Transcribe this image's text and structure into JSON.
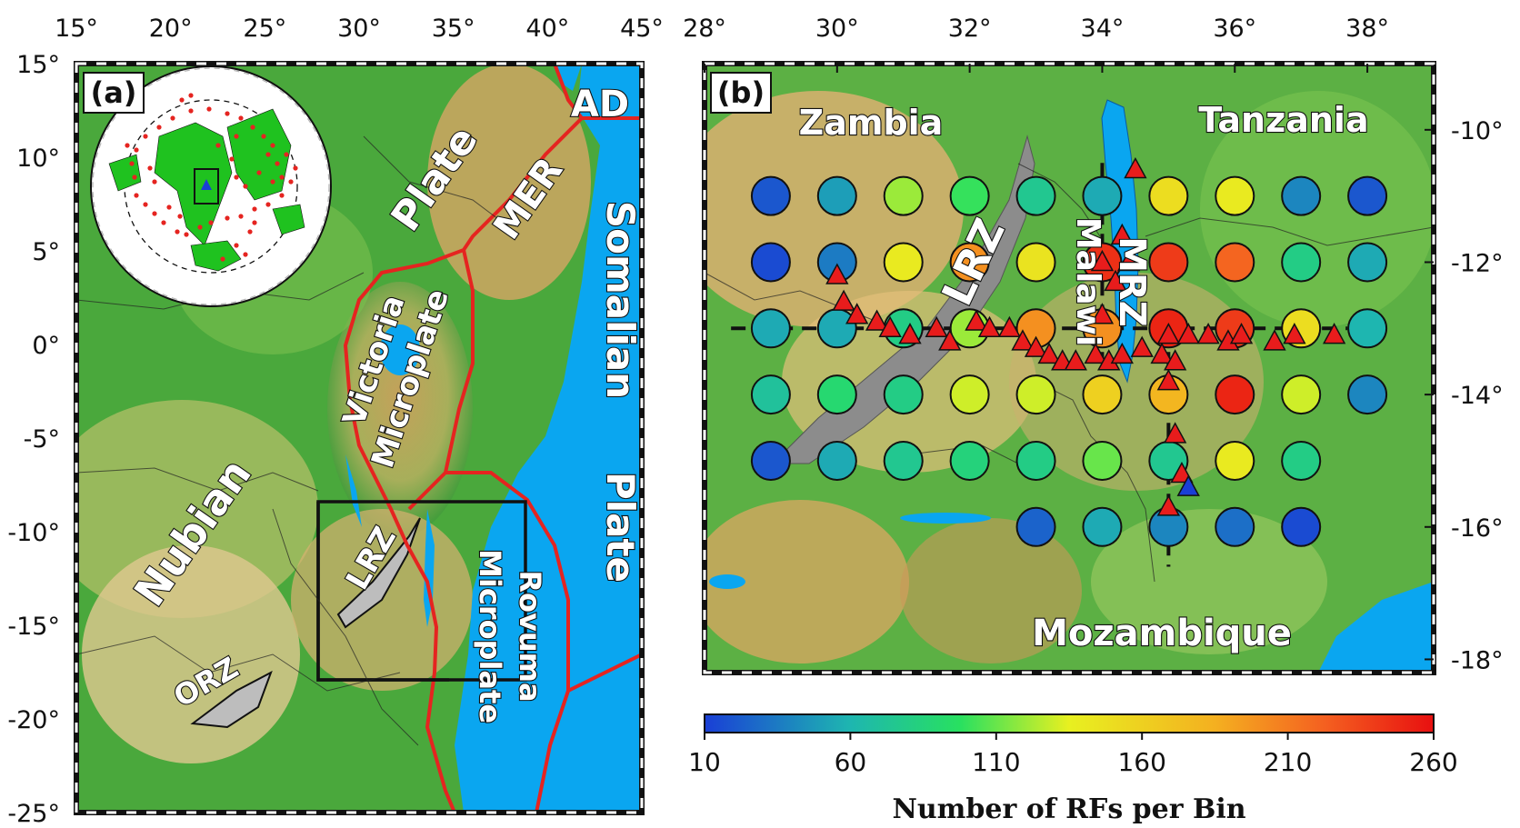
{
  "panel_a": {
    "label": "(a)",
    "x_ticks": [
      "15°",
      "20°",
      "25°",
      "30°",
      "35°",
      "40°",
      "45°"
    ],
    "y_ticks": [
      "15°",
      "10°",
      "5°",
      "0°",
      "-5°",
      "-10°",
      "-15°",
      "-20°",
      "-25°"
    ],
    "labels": {
      "plate_top": "Plate",
      "ad": "AD",
      "mer": "MER",
      "somalian": "Somalian",
      "plate_right": "Plate",
      "victoria": "Victoria",
      "victoria_micro": "Microplate",
      "nubian": "Nubian",
      "lrz": "LRZ",
      "rovuma": "Rovuma",
      "rovuma_micro": "Microplate",
      "orz": "ORZ"
    },
    "colors": {
      "boundary": "#e52420",
      "water": "#0aa6f0",
      "land_low": "#2e8b2e",
      "land_high": "#d8a060"
    }
  },
  "panel_b": {
    "label": "(b)",
    "x_ticks": [
      "28°",
      "30°",
      "32°",
      "34°",
      "36°",
      "38°"
    ],
    "y_ticks": [
      "-10°",
      "-12°",
      "-14°",
      "-16°",
      "-18°"
    ],
    "labels": {
      "zambia": "Zambia",
      "tanzania": "Tanzania",
      "lrz": "LRZ",
      "malawi": "Malawi",
      "mirz": "MRZ",
      "mozambique": "Mozambique"
    },
    "bins": [
      {
        "lon": 29,
        "lat": -11,
        "n": 20
      },
      {
        "lon": 30,
        "lat": -11,
        "n": 50
      },
      {
        "lon": 31,
        "lat": -11,
        "n": 120
      },
      {
        "lon": 32,
        "lat": -11,
        "n": 100
      },
      {
        "lon": 33,
        "lat": -11,
        "n": 75
      },
      {
        "lon": 34,
        "lat": -11,
        "n": 55
      },
      {
        "lon": 35,
        "lat": -11,
        "n": 150
      },
      {
        "lon": 36,
        "lat": -11,
        "n": 140
      },
      {
        "lon": 37,
        "lat": -11,
        "n": 40
      },
      {
        "lon": 38,
        "lat": -11,
        "n": 20
      },
      {
        "lon": 29,
        "lat": -12,
        "n": 15
      },
      {
        "lon": 30,
        "lat": -12,
        "n": 35
      },
      {
        "lon": 31,
        "lat": -12,
        "n": 140
      },
      {
        "lon": 32,
        "lat": -12,
        "n": 200
      },
      {
        "lon": 33,
        "lat": -12,
        "n": 145
      },
      {
        "lon": 34,
        "lat": -12,
        "n": 245
      },
      {
        "lon": 35,
        "lat": -12,
        "n": 240
      },
      {
        "lon": 36,
        "lat": -12,
        "n": 220
      },
      {
        "lon": 37,
        "lat": -12,
        "n": 80
      },
      {
        "lon": 38,
        "lat": -12,
        "n": 55
      },
      {
        "lon": 29,
        "lat": -13,
        "n": 55
      },
      {
        "lon": 30,
        "lat": -13,
        "n": 55
      },
      {
        "lon": 31,
        "lat": -13,
        "n": 80
      },
      {
        "lon": 32,
        "lat": -13,
        "n": 120
      },
      {
        "lon": 33,
        "lat": -13,
        "n": 200
      },
      {
        "lon": 34,
        "lat": -13,
        "n": 200
      },
      {
        "lon": 35,
        "lat": -13,
        "n": 250
      },
      {
        "lon": 36,
        "lat": -13,
        "n": 240
      },
      {
        "lon": 37,
        "lat": -13,
        "n": 150
      },
      {
        "lon": 38,
        "lat": -13,
        "n": 60
      },
      {
        "lon": 29,
        "lat": -14,
        "n": 70
      },
      {
        "lon": 30,
        "lat": -14,
        "n": 90
      },
      {
        "lon": 31,
        "lat": -14,
        "n": 80
      },
      {
        "lon": 32,
        "lat": -14,
        "n": 130
      },
      {
        "lon": 33,
        "lat": -14,
        "n": 130
      },
      {
        "lon": 34,
        "lat": -14,
        "n": 160
      },
      {
        "lon": 35,
        "lat": -14,
        "n": 180
      },
      {
        "lon": 36,
        "lat": -14,
        "n": 250
      },
      {
        "lon": 37,
        "lat": -14,
        "n": 130
      },
      {
        "lon": 38,
        "lat": -14,
        "n": 40
      },
      {
        "lon": 29,
        "lat": -15,
        "n": 20
      },
      {
        "lon": 30,
        "lat": -15,
        "n": 55
      },
      {
        "lon": 31,
        "lat": -15,
        "n": 75
      },
      {
        "lon": 32,
        "lat": -15,
        "n": 85
      },
      {
        "lon": 33,
        "lat": -15,
        "n": 80
      },
      {
        "lon": 34,
        "lat": -15,
        "n": 110
      },
      {
        "lon": 35,
        "lat": -15,
        "n": 75
      },
      {
        "lon": 36,
        "lat": -15,
        "n": 140
      },
      {
        "lon": 37,
        "lat": -15,
        "n": 80
      },
      {
        "lon": 33,
        "lat": -16,
        "n": 25
      },
      {
        "lon": 34,
        "lat": -16,
        "n": 55
      },
      {
        "lon": 35,
        "lat": -16,
        "n": 40
      },
      {
        "lon": 36,
        "lat": -16,
        "n": 30
      },
      {
        "lon": 37,
        "lat": -16,
        "n": 15
      }
    ],
    "stations": [
      [
        30.0,
        -12.2
      ],
      [
        30.1,
        -12.6
      ],
      [
        30.3,
        -12.8
      ],
      [
        30.6,
        -12.9
      ],
      [
        30.8,
        -13.0
      ],
      [
        31.1,
        -13.1
      ],
      [
        31.5,
        -13.0
      ],
      [
        31.7,
        -13.2
      ],
      [
        32.1,
        -12.9
      ],
      [
        32.3,
        -13.0
      ],
      [
        32.6,
        -13.0
      ],
      [
        32.8,
        -13.2
      ],
      [
        33.0,
        -13.3
      ],
      [
        33.2,
        -13.4
      ],
      [
        33.4,
        -13.5
      ],
      [
        33.6,
        -13.5
      ],
      [
        33.9,
        -13.4
      ],
      [
        34.1,
        -13.5
      ],
      [
        34.3,
        -13.4
      ],
      [
        34.6,
        -13.3
      ],
      [
        34.9,
        -13.4
      ],
      [
        35.0,
        -13.1
      ],
      [
        35.3,
        -13.1
      ],
      [
        35.6,
        -13.1
      ],
      [
        35.9,
        -13.2
      ],
      [
        36.1,
        -13.1
      ],
      [
        36.6,
        -13.2
      ],
      [
        36.9,
        -13.1
      ],
      [
        37.5,
        -13.1
      ],
      [
        34.2,
        -12.3
      ],
      [
        34.4,
        -12.0
      ],
      [
        34.3,
        -11.6
      ],
      [
        34.0,
        -12.0
      ],
      [
        34.5,
        -10.6
      ],
      [
        34.0,
        -12.8
      ],
      [
        35.0,
        -13.8
      ],
      [
        35.1,
        -14.6
      ],
      [
        35.2,
        -15.2
      ],
      [
        35.0,
        -15.7
      ],
      [
        35.1,
        -13.5
      ]
    ],
    "blue_station": [
      35.3,
      -15.4
    ],
    "profiles": {
      "ew_lat": -13,
      "ns1_lon": 34,
      "ns2_lon": 35
    }
  },
  "colorbar": {
    "ticks": [
      "10",
      "60",
      "110",
      "160",
      "210",
      "260"
    ],
    "min": 10,
    "max": 260,
    "title": "Number of RFs per Bin"
  }
}
